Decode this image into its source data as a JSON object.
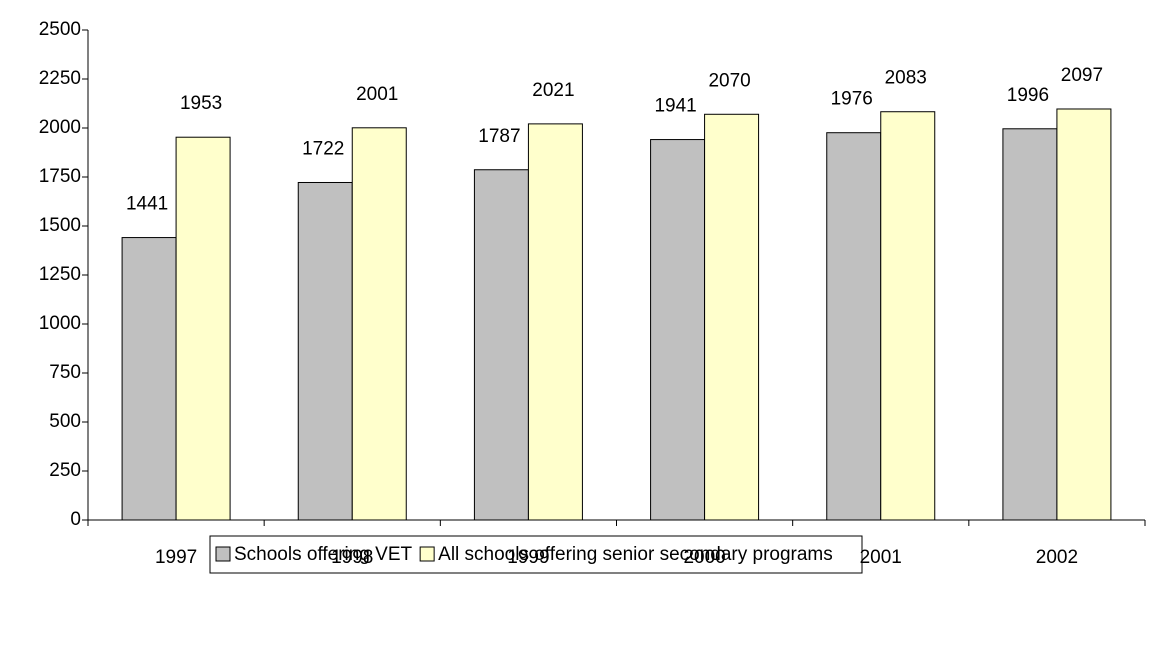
{
  "chart_data": {
    "type": "bar",
    "categories": [
      "1997",
      "1998",
      "1999",
      "2000",
      "2001",
      "2002"
    ],
    "series": [
      {
        "name": "Schools offering VET",
        "color": "#c0c0c0",
        "values": [
          1441,
          1722,
          1787,
          1941,
          1976,
          1996
        ]
      },
      {
        "name": "All schools offering senior secondary programs",
        "color": "#ffffcc",
        "values": [
          1953,
          2001,
          2021,
          2070,
          2083,
          2097
        ]
      }
    ],
    "ylim": [
      0,
      2500
    ],
    "yticks": [
      0,
      250,
      500,
      750,
      1000,
      1250,
      1500,
      1750,
      2000,
      2250,
      2500
    ],
    "grid": false,
    "legend": "bottom"
  }
}
